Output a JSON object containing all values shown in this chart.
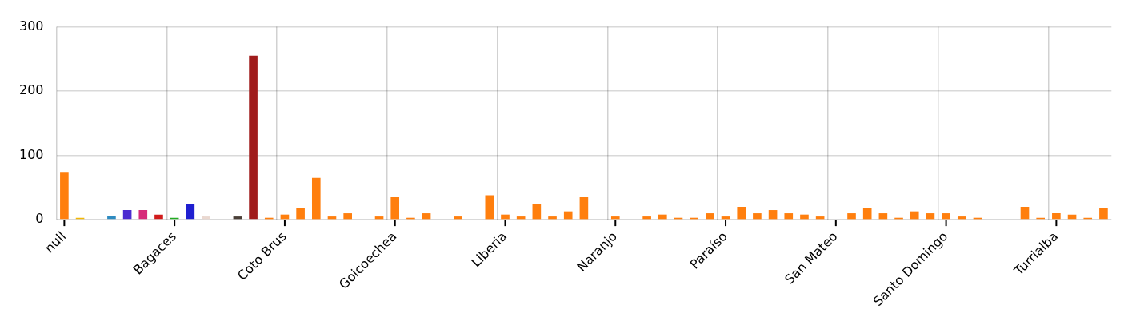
{
  "chart_data": {
    "type": "bar",
    "categories": [
      "null",
      null,
      null,
      null,
      null,
      null,
      null,
      "Bagaces",
      null,
      null,
      null,
      null,
      null,
      null,
      "Coto Brus",
      null,
      null,
      null,
      null,
      null,
      null,
      "Goicoechea",
      null,
      null,
      null,
      null,
      null,
      null,
      "Liberia",
      null,
      null,
      null,
      null,
      null,
      null,
      "Naranjo",
      null,
      null,
      null,
      null,
      null,
      null,
      "Paraíso",
      null,
      null,
      null,
      null,
      null,
      null,
      "San Mateo",
      null,
      null,
      null,
      null,
      null,
      null,
      "Santo Domingo",
      null,
      null,
      null,
      null,
      null,
      null,
      "Turrialba",
      null,
      null,
      null
    ],
    "values": [
      73,
      3,
      null,
      5,
      15,
      15,
      8,
      3,
      25,
      5,
      null,
      5,
      255,
      3,
      8,
      18,
      65,
      5,
      10,
      null,
      5,
      35,
      3,
      10,
      null,
      5,
      null,
      38,
      8,
      5,
      25,
      5,
      13,
      35,
      null,
      5,
      null,
      5,
      8,
      3,
      3,
      10,
      5,
      20,
      10,
      15,
      10,
      8,
      5,
      null,
      10,
      18,
      10,
      3,
      13,
      10,
      10,
      5,
      3,
      null,
      null,
      20,
      3,
      10,
      8,
      3,
      18
    ],
    "colors": [
      "#ff7f0e",
      "#f2b705",
      "#ff7f0e",
      "#2e8bc0",
      "#4b2bd0",
      "#d62a7a",
      "#d11b1b",
      "#22aa22",
      "#1f1fd0",
      "#ead8d0",
      "#ff7f0e",
      "#4a3f38",
      "#a01c1c",
      "#ff7f0e",
      "#ff7f0e",
      "#ff7f0e",
      "#ff7f0e",
      "#ff7f0e",
      "#ff7f0e",
      "#ff7f0e",
      "#ff7f0e",
      "#ff7f0e",
      "#ff7f0e",
      "#ff7f0e",
      "#ff7f0e",
      "#ff7f0e",
      "#ff7f0e",
      "#ff7f0e",
      "#ff7f0e",
      "#ff7f0e",
      "#ff7f0e",
      "#ff7f0e",
      "#ff7f0e",
      "#ff7f0e",
      "#ff7f0e",
      "#ff7f0e",
      "#ff7f0e",
      "#ff7f0e",
      "#ff7f0e",
      "#ff7f0e",
      "#ff7f0e",
      "#ff7f0e",
      "#ff7f0e",
      "#ff7f0e",
      "#ff7f0e",
      "#ff7f0e",
      "#ff7f0e",
      "#ff7f0e",
      "#ff7f0e",
      "#ff7f0e",
      "#ff7f0e",
      "#ff7f0e",
      "#ff7f0e",
      "#ff7f0e",
      "#ff7f0e",
      "#ff7f0e",
      "#ff7f0e",
      "#ff7f0e",
      "#ff7f0e",
      "#ff7f0e",
      "#ff7f0e",
      "#ff7f0e",
      "#ff7f0e",
      "#ff7f0e",
      "#ff7f0e",
      "#ff7f0e",
      "#ff7f0e"
    ],
    "ylim": [
      0,
      300
    ],
    "yticks": [
      0,
      100,
      200,
      300
    ],
    "grid": true,
    "legend": false
  }
}
